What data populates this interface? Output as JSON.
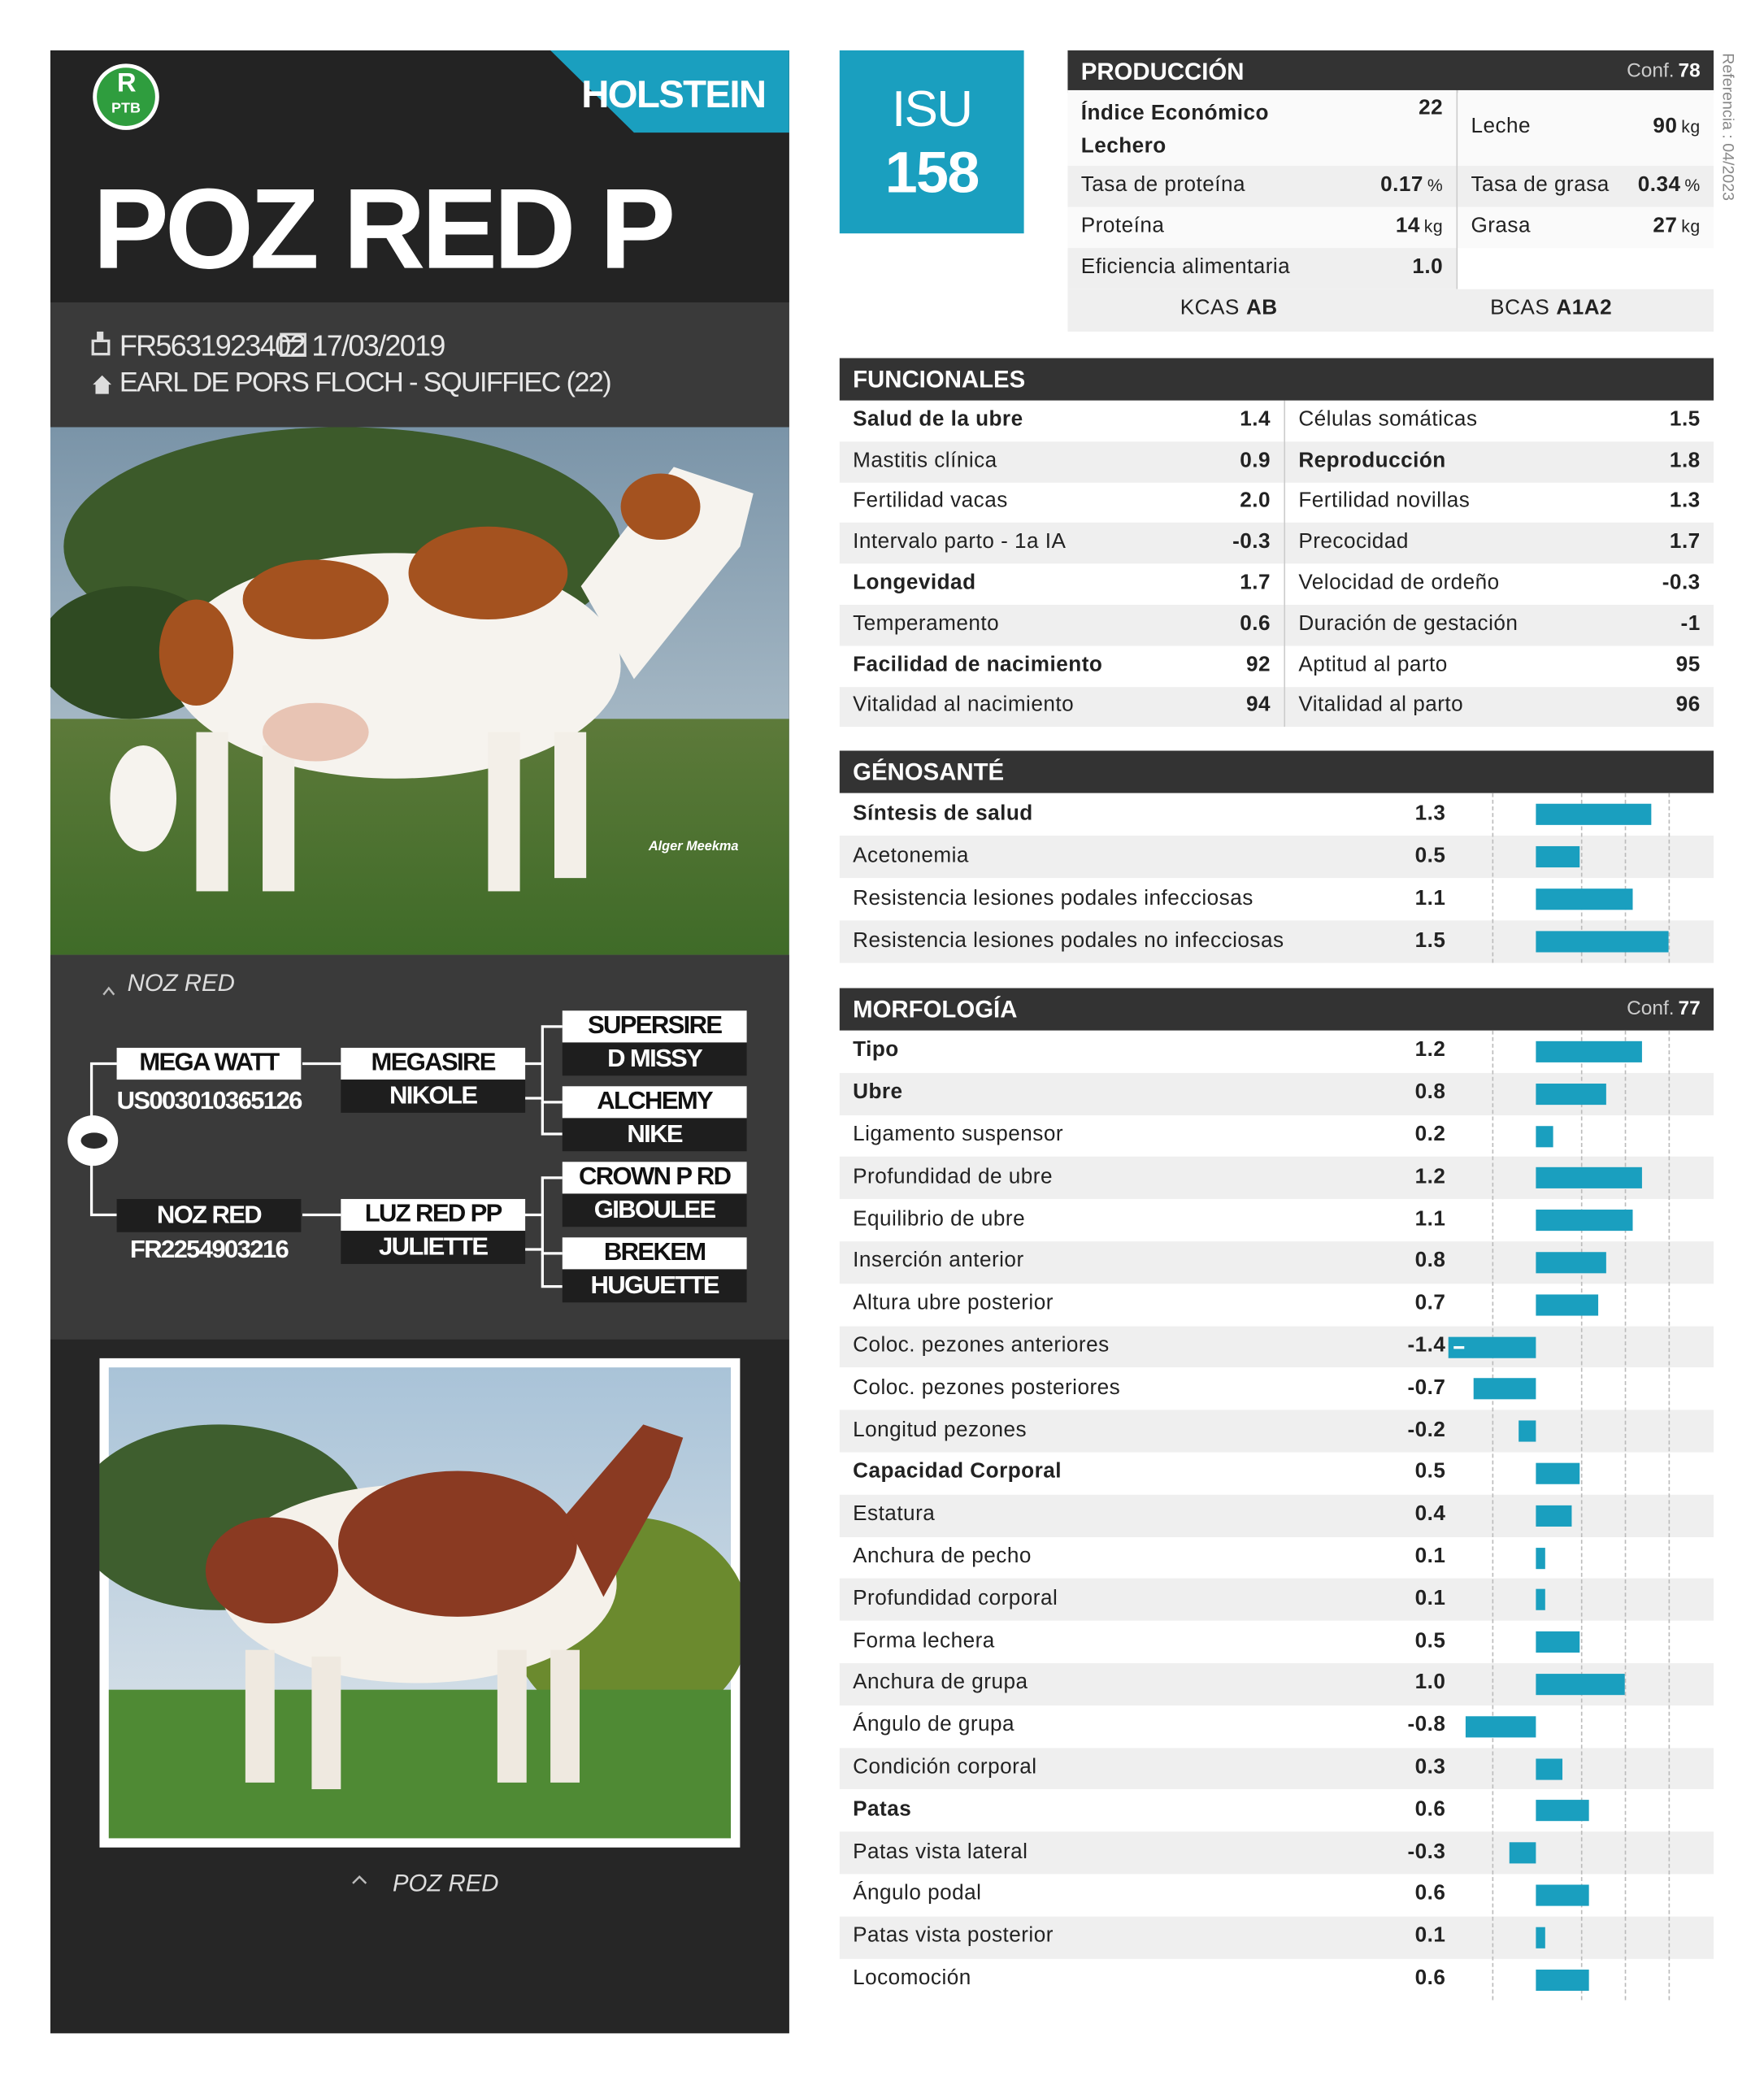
{
  "header": {
    "logo_letter": "R",
    "logo_sub": "PTB",
    "breed": "HOLSTEIN",
    "name": "POZ RED P",
    "id": "FR5631923402",
    "birth_date": "17/03/2019",
    "breeder": "EARL DE PORS FLOCH - SQUIFFIEC (22)",
    "photo_credit": "Alger Meekma"
  },
  "isu": {
    "label": "ISU",
    "value": 158
  },
  "reference": "Referencia : 04/2023",
  "pedigree": {
    "caption": "NOZ RED",
    "sire": {
      "name": "MEGA WATT",
      "id": "US003010365126"
    },
    "dam": {
      "name": "NOZ RED",
      "id": "FR2254903216"
    },
    "pairs": [
      {
        "sire": "MEGASIRE",
        "dam": "NIKOLE"
      },
      {
        "sire": "SUPERSIRE",
        "dam": "D MISSY"
      },
      {
        "sire": "ALCHEMY",
        "dam": "NIKE"
      },
      {
        "sire": "LUZ RED PP",
        "dam": "JULIETTE"
      },
      {
        "sire": "CROWN P RD",
        "dam": "GIBOULEE"
      },
      {
        "sire": "BREKEM",
        "dam": "HUGUETTE"
      }
    ]
  },
  "photo_caption": "POZ RED",
  "produccion": {
    "title": "PRODUCCIÓN",
    "conf_label": "Conf.",
    "conf": 78,
    "left": [
      {
        "label": "Índice Económico Lechero",
        "value": 22,
        "bold": true
      },
      {
        "label": "Tasa de proteína",
        "value": 0.17,
        "unit": "%"
      },
      {
        "label": "Proteína",
        "value": 14,
        "unit": "kg"
      },
      {
        "label": "Eficiencia alimentaria",
        "value": 1.0,
        "value_label": "1.0"
      }
    ],
    "right": [
      {
        "label": "Leche",
        "value": 90,
        "unit": "kg"
      },
      {
        "label": "Tasa de grasa",
        "value": 0.34,
        "unit": "%"
      },
      {
        "label": "Grasa",
        "value": 27,
        "unit": "kg"
      }
    ],
    "genotype": [
      {
        "label": "KCAS",
        "value": "AB"
      },
      {
        "label": "BCAS",
        "value": "A1A2"
      }
    ]
  },
  "funcionales": {
    "title": "FUNCIONALES",
    "left": [
      {
        "label": "Salud de la ubre",
        "value": 1.4,
        "bold": true
      },
      {
        "label": "Mastitis clínica",
        "value": 0.9
      },
      {
        "label": "Fertilidad vacas",
        "value": 2.0,
        "value_label": "2.0"
      },
      {
        "label": "Intervalo parto - 1a IA",
        "value": -0.3
      },
      {
        "label": "Longevidad",
        "value": 1.7,
        "bold": true
      },
      {
        "label": "Temperamento",
        "value": 0.6
      },
      {
        "label": "Facilidad de nacimiento",
        "value": 92,
        "bold": true
      },
      {
        "label": "Vitalidad al nacimiento",
        "value": 94
      }
    ],
    "right": [
      {
        "label": "Células somáticas",
        "value": 1.5
      },
      {
        "label": "Reproducción",
        "value": 1.8,
        "bold": true
      },
      {
        "label": "Fertilidad novillas",
        "value": 1.3
      },
      {
        "label": "Precocidad",
        "value": 1.7
      },
      {
        "label": "Velocidad de ordeño",
        "value": -0.3
      },
      {
        "label": "Duración de gestación",
        "value": -1
      },
      {
        "label": "Aptitud al parto",
        "value": 95
      },
      {
        "label": "Vitalidad al parto",
        "value": 96
      }
    ]
  },
  "genosante": {
    "title": "GÉNOSANTÉ",
    "rows": [
      {
        "label": "Síntesis de salud",
        "value": 1.3,
        "bold": true
      },
      {
        "label": "Acetonemia",
        "value": 0.5
      },
      {
        "label": "Resistencia lesiones podales infecciosas",
        "value": 1.1
      },
      {
        "label": "Resistencia lesiones podales no infecciosas",
        "value": 1.5
      }
    ]
  },
  "morfologia": {
    "title": "MORFOLOGÍA",
    "conf_label": "Conf.",
    "conf": 77,
    "rows": [
      {
        "label": "Tipo",
        "value": 1.2,
        "bold": true
      },
      {
        "label": "Ubre",
        "value": 0.8,
        "bold": true
      },
      {
        "label": "Ligamento suspensor",
        "value": 0.2
      },
      {
        "label": "Profundidad de ubre",
        "value": 1.2
      },
      {
        "label": "Equilibrio de ubre",
        "value": 1.1
      },
      {
        "label": "Inserción anterior",
        "value": 0.8
      },
      {
        "label": "Altura ubre posterior",
        "value": 0.7
      },
      {
        "label": "Coloc. pezones anteriores",
        "value": -1.4
      },
      {
        "label": "Coloc. pezones posteriores",
        "value": -0.7
      },
      {
        "label": "Longitud pezones",
        "value": -0.2
      },
      {
        "label": "Capacidad Corporal",
        "value": 0.5,
        "bold": true
      },
      {
        "label": "Estatura",
        "value": 0.4
      },
      {
        "label": "Anchura de pecho",
        "value": 0.1
      },
      {
        "label": "Profundidad corporal",
        "value": 0.1
      },
      {
        "label": "Forma lechera",
        "value": 0.5
      },
      {
        "label": "Anchura de grupa",
        "value": 1.0,
        "value_label": "1.0"
      },
      {
        "label": "Ángulo de grupa",
        "value": -0.8
      },
      {
        "label": "Condición corporal",
        "value": 0.3
      },
      {
        "label": "Patas",
        "value": 0.6,
        "bold": true
      },
      {
        "label": "Patas vista lateral",
        "value": -0.3
      },
      {
        "label": "Ángulo podal",
        "value": 0.6
      },
      {
        "label": "Patas vista posterior",
        "value": 0.1
      },
      {
        "label": "Locomoción",
        "value": 0.6
      }
    ]
  }
}
